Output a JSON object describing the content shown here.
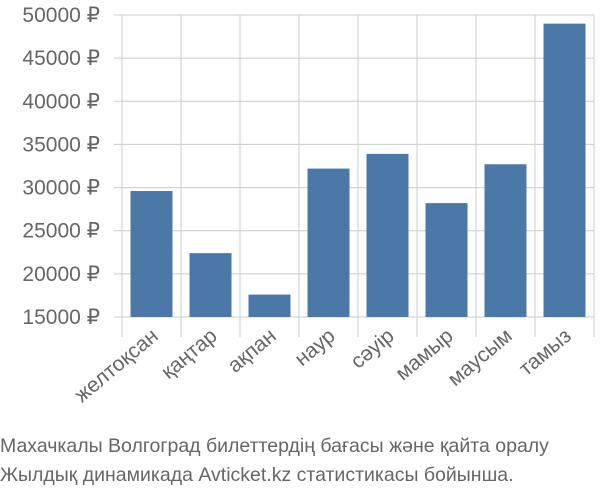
{
  "chart_data": {
    "type": "bar",
    "categories": [
      "желтоқсан",
      "қаңтар",
      "ақпан",
      "наур",
      "сәуір",
      "мамыр",
      "маусым",
      "тамыз"
    ],
    "values": [
      29600,
      22400,
      17600,
      32200,
      33900,
      28200,
      32700,
      49000
    ],
    "ylim": [
      15000,
      50000
    ],
    "yticks": [
      15000,
      20000,
      25000,
      30000,
      35000,
      40000,
      45000,
      50000
    ],
    "y_tick_labels": [
      "15000 ₽",
      "20000 ₽",
      "25000 ₽",
      "30000 ₽",
      "35000 ₽",
      "40000 ₽",
      "45000 ₽",
      "50000 ₽"
    ],
    "grid": true,
    "bar_color": "#4c78a8",
    "grid_color": "#cccccc",
    "title": "",
    "xlabel": "",
    "ylabel": ""
  },
  "caption": {
    "line1": "Махачкалы Волгоград билеттердің бағасы және қайта оралу",
    "line2": "Жылдық динамикада Avticket.kz статистикасы бойынша."
  }
}
